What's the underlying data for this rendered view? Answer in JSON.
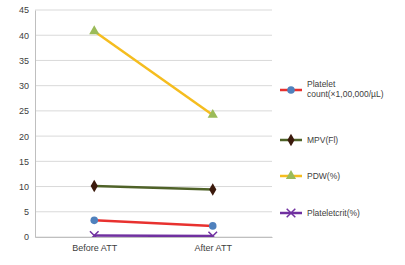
{
  "chart_data": {
    "type": "line",
    "categories": [
      "Before ATT",
      "After ATT"
    ],
    "series": [
      {
        "name": "Platelet count(×1,00,000/µL)",
        "color": "#e8312f",
        "marker": "circle",
        "values": [
          3.3,
          2.2
        ]
      },
      {
        "name": "MPV(Fl)",
        "color": "#4f6228",
        "marker": "diamond",
        "values": [
          10.1,
          9.4
        ]
      },
      {
        "name": "PDW(%)",
        "color": "#f5bd1f",
        "marker": "triangle",
        "values": [
          40.8,
          24.2
        ]
      },
      {
        "name": "Plateletcrit(%)",
        "color": "#7030a0",
        "marker": "x",
        "values": [
          0.3,
          0.2
        ]
      }
    ],
    "ylim": [
      0,
      45
    ],
    "yticks": [
      0,
      5,
      10,
      15,
      20,
      25,
      30,
      35,
      40,
      45
    ],
    "grid": true,
    "legend": "right"
  }
}
